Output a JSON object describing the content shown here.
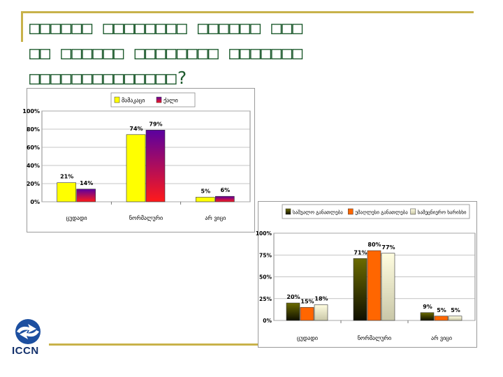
{
  "slide": {
    "title_lines": [
      "□□□□□□ □□□□□□□□ □□□□□□ □□□",
      "□□ □□□□□□ □□□□□□□□ □□□□□□□",
      "□□□□□□□□□□□□□□?"
    ],
    "logo_text": "ICCN"
  },
  "chart_data": [
    {
      "type": "bar",
      "categories": [
        "ცუდადი",
        "ნორმალური",
        "არ ვიცი"
      ],
      "series": [
        {
          "name": "მამაკაცი",
          "values": [
            21,
            74,
            5
          ],
          "labels": [
            "21%",
            "74%",
            "5%"
          ],
          "color": "#ffff00",
          "gradient_to": "#ffff00"
        },
        {
          "name": "ქალი",
          "values": [
            14,
            79,
            6
          ],
          "labels": [
            "14%",
            "79%",
            "6%"
          ],
          "color": "#5a00a0",
          "gradient_to": "#ff1a1a"
        }
      ],
      "yticks": [
        "100%",
        "80%",
        "60%",
        "40%",
        "20%",
        "0%"
      ],
      "ylim": [
        0,
        100
      ],
      "legend": "top"
    },
    {
      "type": "bar",
      "categories": [
        "ცუდადი",
        "ნორმალური",
        "არ ვიცი"
      ],
      "series": [
        {
          "name": "საშუალო განათლება",
          "values": [
            20,
            71,
            9
          ],
          "labels": [
            "20%",
            "71%",
            "9%"
          ],
          "color": "#6b6b00",
          "gradient_to": "#101000"
        },
        {
          "name": "უმაღლესი განათლება",
          "values": [
            15,
            80,
            5
          ],
          "labels": [
            "15%",
            "80%",
            "5%"
          ],
          "color": "#ff6600",
          "gradient_to": "#ff6600"
        },
        {
          "name": "სამეცნიერო ხარისხი",
          "values": [
            18,
            77,
            5
          ],
          "labels": [
            "18%",
            "77%",
            "5%"
          ],
          "color": "#fffde0",
          "gradient_to": "#c9c7a8"
        }
      ],
      "yticks": [
        "100%",
        "75%",
        "50%",
        "25%",
        "0%"
      ],
      "ylim": [
        0,
        100
      ],
      "legend": "top"
    }
  ]
}
